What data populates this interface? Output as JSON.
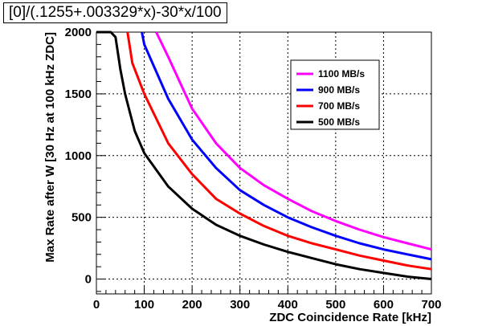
{
  "chart_data": {
    "type": "line",
    "title": "[0]/(.1255+.003329*x)-30*x/100",
    "xlabel": "ZDC Coincidence Rate [kHz]",
    "ylabel": "Max Rate after W [30 Hz at 100 kHz ZDC]",
    "xlim": [
      0,
      700
    ],
    "ylim": [
      -120,
      2000
    ],
    "x_ticks": [
      0,
      100,
      200,
      300,
      400,
      500,
      600,
      700
    ],
    "y_ticks": [
      0,
      500,
      1000,
      1500,
      2000
    ],
    "grid": true,
    "legend_position": "top-right",
    "series": [
      {
        "name": "1100 MB/s",
        "color": "#ff00ff",
        "x": [
          125,
          150,
          200,
          250,
          300,
          350,
          400,
          450,
          500,
          550,
          600,
          650,
          700
        ],
        "y": [
          2000,
          1800,
          1380,
          1100,
          900,
          760,
          650,
          550,
          470,
          400,
          340,
          290,
          240
        ]
      },
      {
        "name": "900 MB/s",
        "color": "#0000ff",
        "x": [
          95,
          100,
          150,
          200,
          250,
          300,
          350,
          400,
          450,
          500,
          550,
          600,
          650,
          700
        ],
        "y": [
          2000,
          1900,
          1460,
          1130,
          900,
          720,
          600,
          500,
          420,
          350,
          290,
          240,
          200,
          160
        ]
      },
      {
        "name": "700 MB/s",
        "color": "#ff0000",
        "x": [
          65,
          75,
          100,
          150,
          200,
          250,
          300,
          350,
          400,
          450,
          500,
          550,
          600,
          650,
          700
        ],
        "y": [
          2000,
          1750,
          1500,
          1100,
          850,
          650,
          530,
          430,
          350,
          290,
          240,
          190,
          150,
          110,
          80
        ]
      },
      {
        "name": "500 MB/s",
        "color": "#000000",
        "x": [
          0,
          20,
          30,
          40,
          50,
          60,
          70,
          80,
          100,
          150,
          200,
          250,
          300,
          350,
          400,
          450,
          500,
          550,
          600,
          650,
          700
        ],
        "y": [
          2000,
          2000,
          2000,
          1960,
          1700,
          1500,
          1350,
          1200,
          1020,
          750,
          570,
          440,
          350,
          280,
          220,
          170,
          120,
          80,
          50,
          20,
          0
        ]
      }
    ]
  }
}
